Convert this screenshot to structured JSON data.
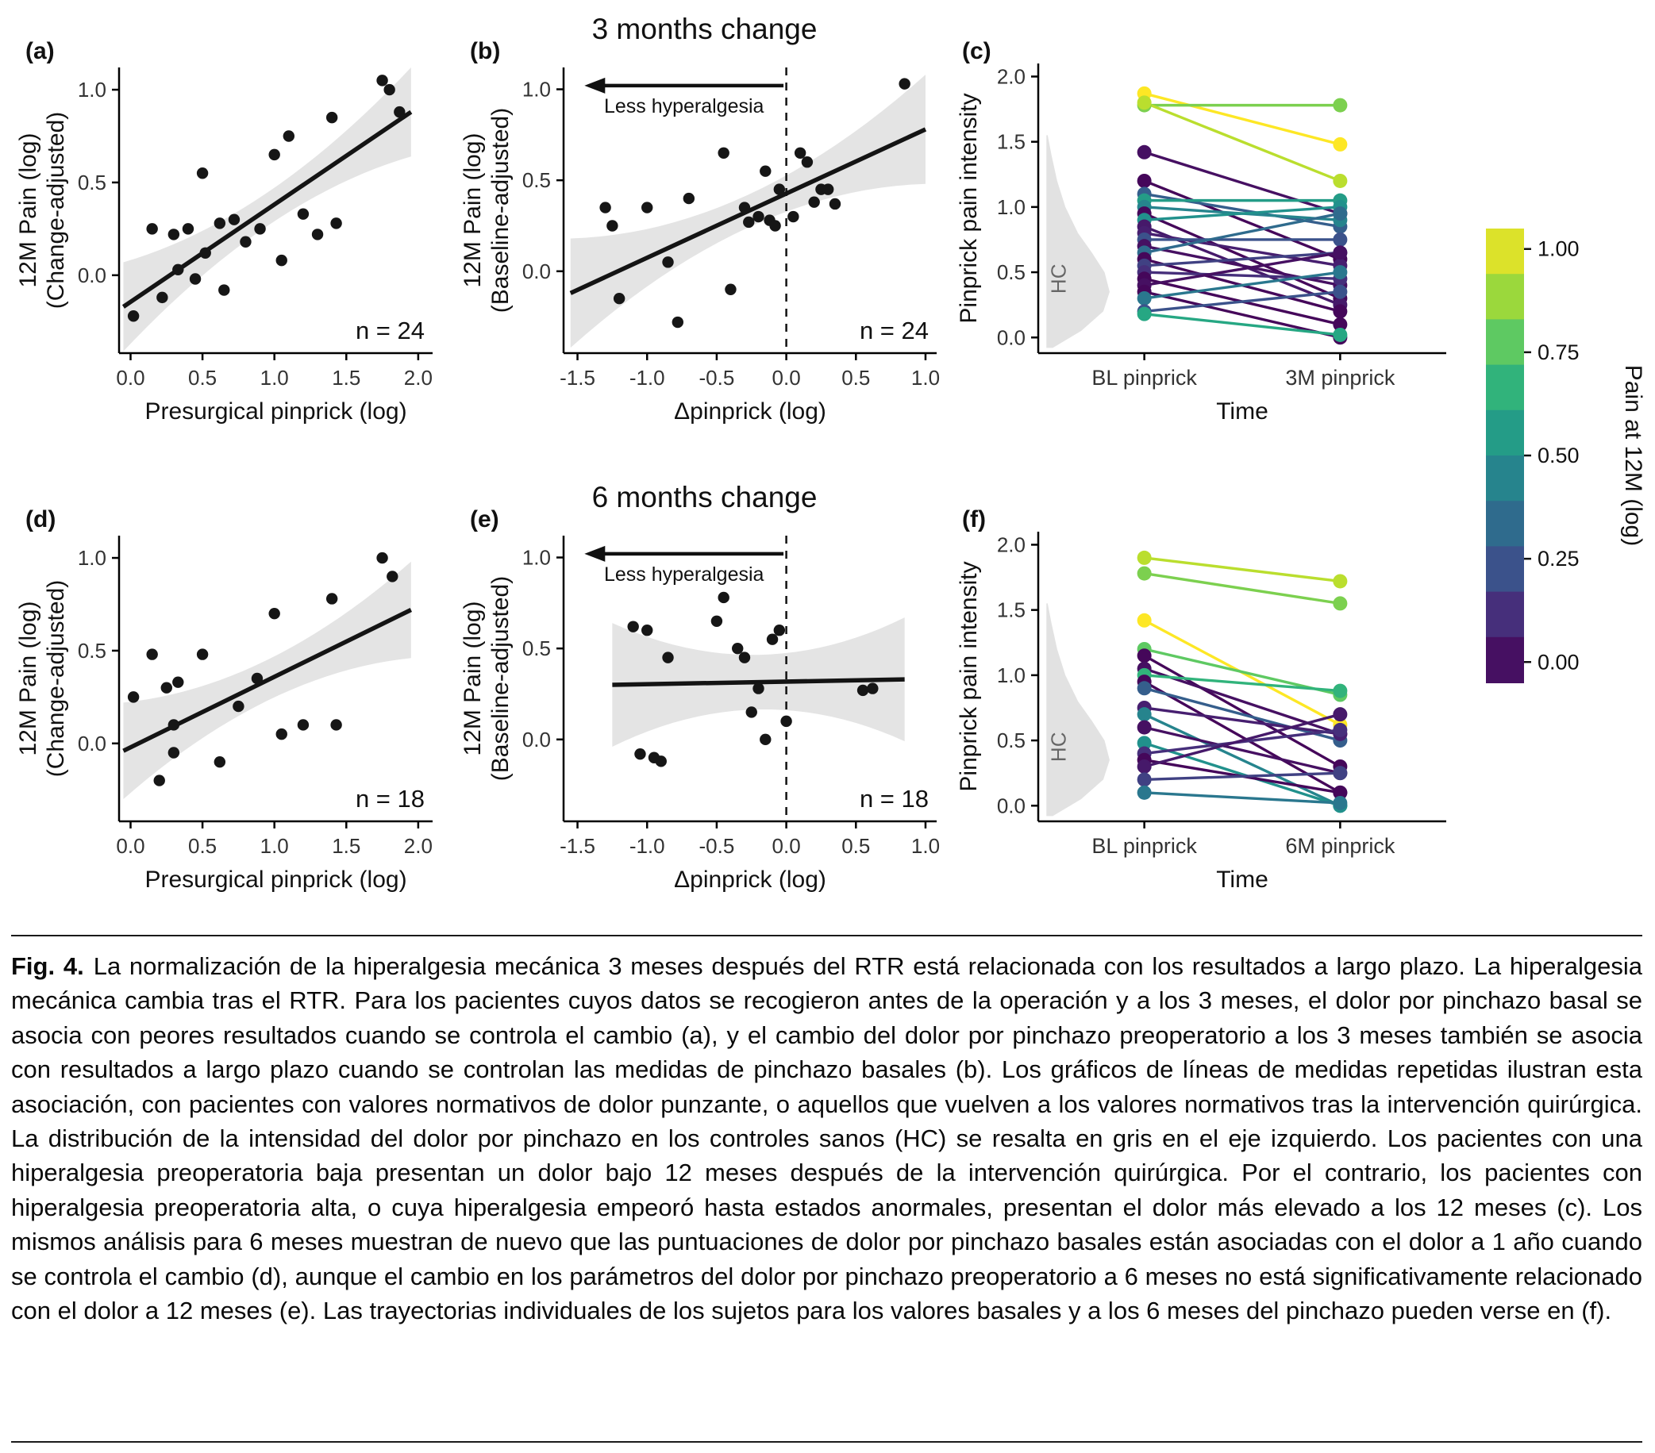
{
  "figure": {
    "titles": {
      "row1": "3 months change",
      "row2": "6 months change"
    },
    "panels": {
      "a": {
        "label": "(a)"
      },
      "b": {
        "label": "(b)"
      },
      "c": {
        "label": "(c)"
      },
      "d": {
        "label": "(d)"
      },
      "e": {
        "label": "(e)"
      },
      "f": {
        "label": "(f)"
      }
    }
  },
  "colorbar": {
    "title": "Pain at 12M (log)",
    "ticks": [
      "1.00",
      "0.75",
      "0.50",
      "0.25",
      "0.00"
    ],
    "viridis_stops": [
      [
        0.0,
        "#440154"
      ],
      [
        0.13,
        "#482878"
      ],
      [
        0.25,
        "#3b528b"
      ],
      [
        0.38,
        "#2c728e"
      ],
      [
        0.5,
        "#21918c"
      ],
      [
        0.63,
        "#28ae80"
      ],
      [
        0.75,
        "#5ec962"
      ],
      [
        0.88,
        "#addc30"
      ],
      [
        1.0,
        "#fde725"
      ]
    ]
  },
  "caption": {
    "label": "Fig. 4.",
    "text": "La normalización de la hiperalgesia mecánica 3 meses después del RTR está relacionada con los resultados a largo plazo. La hiperalgesia mecánica cambia tras el RTR. Para los pacientes cuyos datos se recogieron antes de la operación y a los 3 meses, el dolor por pinchazo basal se asocia con peores resultados cuando se controla el cambio (a), y el cambio del dolor por pinchazo preoperatorio a los 3 meses también se asocia con resultados a largo plazo cuando se controlan las medidas de pinchazo basales (b). Los gráficos de líneas de medidas repetidas ilustran esta asociación, con pacientes con valores normativos de dolor punzante, o aquellos que vuelven a los valores normativos tras la intervención quirúrgica. La distribución de la intensidad del dolor por pinchazo en los controles sanos (HC) se resalta en gris en el eje izquierdo. Los pacientes con una hiperalgesia preoperatoria baja presentan un dolor bajo 12 meses después de la intervención quirúrgica. Por el contrario, los pacientes con hiperalgesia preoperatoria alta, o cuya hiperalgesia empeoró hasta estados anormales, presentan el dolor más elevado a los 12 meses (c). Los mismos análisis para 6 meses muestran de nuevo que las puntuaciones de dolor por pinchazo basales están asociadas con el dolor a 1 año cuando se controla el cambio (d), aunque el cambio en los parámetros del dolor por pinchazo preoperatorio a 6 meses no está significativamente relacionado con el dolor a 12 meses (e). Las trayectorias individuales de los sujetos para los valores basales y a los 6 meses del pinchazo pueden verse en (f)."
  },
  "chart_data": [
    {
      "id": "a",
      "type": "scatter",
      "xlabel": "Presurgical pinprick (log)",
      "ylabel": [
        "12M Pain (log)",
        "(Change-adjusted)"
      ],
      "xlim": [
        -0.08,
        2.1
      ],
      "ylim": [
        -0.42,
        1.12
      ],
      "xticks": [
        0,
        0.5,
        1,
        1.5,
        2
      ],
      "yticks": [
        0,
        0.5,
        1
      ],
      "n_label": "n = 24",
      "regression": {
        "x1": -0.05,
        "y1": -0.17,
        "x2": 1.95,
        "y2": 0.88
      },
      "band": {
        "center": 0.09,
        "edge": 0.24
      },
      "points": [
        [
          0.02,
          -0.22
        ],
        [
          0.15,
          0.25
        ],
        [
          0.22,
          -0.12
        ],
        [
          0.3,
          0.22
        ],
        [
          0.33,
          0.03
        ],
        [
          0.4,
          0.25
        ],
        [
          0.45,
          -0.02
        ],
        [
          0.5,
          0.55
        ],
        [
          0.52,
          0.12
        ],
        [
          0.62,
          0.28
        ],
        [
          0.65,
          -0.08
        ],
        [
          0.72,
          0.3
        ],
        [
          0.8,
          0.18
        ],
        [
          0.9,
          0.25
        ],
        [
          1.0,
          0.65
        ],
        [
          1.05,
          0.08
        ],
        [
          1.1,
          0.75
        ],
        [
          1.2,
          0.33
        ],
        [
          1.3,
          0.22
        ],
        [
          1.4,
          0.85
        ],
        [
          1.43,
          0.28
        ],
        [
          1.75,
          1.05
        ],
        [
          1.8,
          1.0
        ],
        [
          1.87,
          0.88
        ]
      ]
    },
    {
      "id": "b",
      "type": "scatter",
      "xlabel": "Δpinprick  (log)",
      "ylabel": [
        "12M Pain (log)",
        "(Baseline-adjusted)"
      ],
      "xlim": [
        -1.6,
        1.08
      ],
      "ylim": [
        -0.45,
        1.12
      ],
      "xticks": [
        -1.5,
        -1,
        -0.5,
        0,
        0.5,
        1
      ],
      "yticks": [
        0,
        0.5,
        1
      ],
      "n_label": "n = 24",
      "dashed_x": 0,
      "arrow": {
        "label": "Less hyperalgesia",
        "from": -0.02,
        "to": -1.45,
        "y": 1.02
      },
      "regression": {
        "x1": -1.55,
        "y1": -0.12,
        "x2": 1.0,
        "y2": 0.78
      },
      "band": {
        "center": 0.09,
        "edge": 0.3
      },
      "points": [
        [
          -1.3,
          0.35
        ],
        [
          -1.25,
          0.25
        ],
        [
          -1.2,
          -0.15
        ],
        [
          -1.0,
          0.35
        ],
        [
          -0.85,
          0.05
        ],
        [
          -0.78,
          -0.28
        ],
        [
          -0.7,
          0.4
        ],
        [
          -0.45,
          0.65
        ],
        [
          -0.4,
          -0.1
        ],
        [
          -0.3,
          0.35
        ],
        [
          -0.27,
          0.27
        ],
        [
          -0.2,
          0.3
        ],
        [
          -0.15,
          0.55
        ],
        [
          -0.12,
          0.28
        ],
        [
          -0.08,
          0.25
        ],
        [
          -0.05,
          0.45
        ],
        [
          0.05,
          0.3
        ],
        [
          0.1,
          0.65
        ],
        [
          0.15,
          0.6
        ],
        [
          0.2,
          0.38
        ],
        [
          0.25,
          0.45
        ],
        [
          0.3,
          0.45
        ],
        [
          0.35,
          0.37
        ],
        [
          0.85,
          1.03
        ]
      ]
    },
    {
      "id": "c",
      "type": "slope",
      "ylabel": "Pinprick pain intensity",
      "xlabel": "Time",
      "categories": [
        "BL pinprick",
        "3M pinprick"
      ],
      "ylim": [
        -0.12,
        2.1
      ],
      "yticks": [
        0,
        0.5,
        1,
        1.5,
        2
      ],
      "xpos": [
        0.26,
        0.74
      ],
      "hc_label": "HC",
      "density": {
        "max_w": 0.155,
        "profile": [
          [
            -0.08,
            0.1
          ],
          [
            0.05,
            0.55
          ],
          [
            0.2,
            0.9
          ],
          [
            0.35,
            1.0
          ],
          [
            0.5,
            0.92
          ],
          [
            0.65,
            0.72
          ],
          [
            0.8,
            0.5
          ],
          [
            1.0,
            0.3
          ],
          [
            1.2,
            0.17
          ],
          [
            1.4,
            0.08
          ],
          [
            1.55,
            0.02
          ]
        ]
      },
      "subjects": [
        {
          "bl": 1.87,
          "end": 1.48,
          "pain": 1.0
        },
        {
          "bl": 1.78,
          "end": 1.78,
          "pain": 0.8
        },
        {
          "bl": 1.8,
          "end": 1.2,
          "pain": 0.9
        },
        {
          "bl": 1.42,
          "end": 0.95,
          "pain": 0.05
        },
        {
          "bl": 1.2,
          "end": 0.6,
          "pain": 0.02
        },
        {
          "bl": 1.1,
          "end": 0.85,
          "pain": 0.3
        },
        {
          "bl": 1.05,
          "end": 1.05,
          "pain": 0.55
        },
        {
          "bl": 1.0,
          "end": 0.9,
          "pain": 0.45
        },
        {
          "bl": 0.95,
          "end": 0.3,
          "pain": 0.02
        },
        {
          "bl": 0.9,
          "end": 1.0,
          "pain": 0.5
        },
        {
          "bl": 0.85,
          "end": 0.25,
          "pain": 0.08
        },
        {
          "bl": 0.8,
          "end": 0.55,
          "pain": 0.1
        },
        {
          "bl": 0.75,
          "end": 0.75,
          "pain": 0.25
        },
        {
          "bl": 0.7,
          "end": 0.4,
          "pain": 0.05
        },
        {
          "bl": 0.65,
          "end": 0.95,
          "pain": 0.35
        },
        {
          "bl": 0.6,
          "end": 0.2,
          "pain": 0.02
        },
        {
          "bl": 0.55,
          "end": 0.65,
          "pain": 0.2
        },
        {
          "bl": 0.5,
          "end": 0.45,
          "pain": 0.15
        },
        {
          "bl": 0.45,
          "end": 0.1,
          "pain": 0.02
        },
        {
          "bl": 0.4,
          "end": 0.65,
          "pain": 0.05
        },
        {
          "bl": 0.35,
          "end": 0.0,
          "pain": 0.02
        },
        {
          "bl": 0.3,
          "end": 0.5,
          "pain": 0.4
        },
        {
          "bl": 0.2,
          "end": 0.35,
          "pain": 0.25
        },
        {
          "bl": 0.18,
          "end": 0.02,
          "pain": 0.6
        }
      ]
    },
    {
      "id": "d",
      "type": "scatter",
      "xlabel": "Presurgical pinprick (log)",
      "ylabel": [
        "12M Pain (log)",
        "(Change-adjusted)"
      ],
      "xlim": [
        -0.08,
        2.1
      ],
      "ylim": [
        -0.42,
        1.12
      ],
      "xticks": [
        0,
        0.5,
        1,
        1.5,
        2
      ],
      "yticks": [
        0,
        0.5,
        1
      ],
      "n_label": "n = 18",
      "regression": {
        "x1": -0.05,
        "y1": -0.04,
        "x2": 1.95,
        "y2": 0.72
      },
      "band": {
        "center": 0.11,
        "edge": 0.26
      },
      "points": [
        [
          0.02,
          0.25
        ],
        [
          0.15,
          0.48
        ],
        [
          0.2,
          -0.2
        ],
        [
          0.25,
          0.3
        ],
        [
          0.3,
          0.1
        ],
        [
          0.3,
          -0.05
        ],
        [
          0.33,
          0.33
        ],
        [
          0.5,
          0.48
        ],
        [
          0.62,
          -0.1
        ],
        [
          0.75,
          0.2
        ],
        [
          0.88,
          0.35
        ],
        [
          1.0,
          0.7
        ],
        [
          1.05,
          0.05
        ],
        [
          1.2,
          0.1
        ],
        [
          1.4,
          0.78
        ],
        [
          1.43,
          0.1
        ],
        [
          1.75,
          1.0
        ],
        [
          1.82,
          0.9
        ]
      ]
    },
    {
      "id": "e",
      "type": "scatter",
      "xlabel": "Δpinprick  (log)",
      "ylabel": [
        "12M Pain (log)",
        "(Baseline-adjusted)"
      ],
      "xlim": [
        -1.6,
        1.08
      ],
      "ylim": [
        -0.45,
        1.12
      ],
      "xticks": [
        -1.5,
        -1,
        -0.5,
        0,
        0.5,
        1
      ],
      "yticks": [
        0,
        0.5,
        1
      ],
      "n_label": "n = 18",
      "dashed_x": 0,
      "arrow": {
        "label": "Less hyperalgesia",
        "from": -0.02,
        "to": -1.45,
        "y": 1.02
      },
      "regression": {
        "x1": -1.25,
        "y1": 0.3,
        "x2": 0.85,
        "y2": 0.33
      },
      "band": {
        "center": 0.15,
        "edge": 0.34
      },
      "points": [
        [
          -1.1,
          0.62
        ],
        [
          -1.05,
          -0.08
        ],
        [
          -1.0,
          0.6
        ],
        [
          -0.95,
          -0.1
        ],
        [
          -0.9,
          -0.12
        ],
        [
          -0.85,
          0.45
        ],
        [
          -0.5,
          0.65
        ],
        [
          -0.45,
          0.78
        ],
        [
          -0.35,
          0.5
        ],
        [
          -0.3,
          0.45
        ],
        [
          -0.25,
          0.15
        ],
        [
          -0.2,
          0.28
        ],
        [
          -0.15,
          0.0
        ],
        [
          -0.1,
          0.55
        ],
        [
          -0.05,
          0.6
        ],
        [
          0.0,
          0.1
        ],
        [
          0.55,
          0.27
        ],
        [
          0.62,
          0.28
        ]
      ]
    },
    {
      "id": "f",
      "type": "slope",
      "ylabel": "Pinprick pain intensity",
      "xlabel": "Time",
      "categories": [
        "BL pinprick",
        "6M pinprick"
      ],
      "ylim": [
        -0.12,
        2.1
      ],
      "yticks": [
        0,
        0.5,
        1,
        1.5,
        2
      ],
      "xpos": [
        0.26,
        0.74
      ],
      "hc_label": "HC",
      "density": {
        "max_w": 0.155,
        "profile": [
          [
            -0.08,
            0.1
          ],
          [
            0.05,
            0.55
          ],
          [
            0.2,
            0.9
          ],
          [
            0.35,
            1.0
          ],
          [
            0.5,
            0.92
          ],
          [
            0.65,
            0.72
          ],
          [
            0.8,
            0.5
          ],
          [
            1.0,
            0.3
          ],
          [
            1.2,
            0.17
          ],
          [
            1.4,
            0.08
          ],
          [
            1.55,
            0.02
          ]
        ]
      },
      "subjects": [
        {
          "bl": 1.9,
          "end": 1.72,
          "pain": 0.9
        },
        {
          "bl": 1.78,
          "end": 1.55,
          "pain": 0.8
        },
        {
          "bl": 1.42,
          "end": 0.62,
          "pain": 1.0
        },
        {
          "bl": 1.2,
          "end": 0.85,
          "pain": 0.75
        },
        {
          "bl": 1.15,
          "end": 0.3,
          "pain": 0.02
        },
        {
          "bl": 1.05,
          "end": 0.55,
          "pain": 0.05
        },
        {
          "bl": 1.0,
          "end": 0.88,
          "pain": 0.65
        },
        {
          "bl": 0.95,
          "end": 0.1,
          "pain": 0.02
        },
        {
          "bl": 0.9,
          "end": 0.5,
          "pain": 0.3
        },
        {
          "bl": 0.75,
          "end": 0.55,
          "pain": 0.1
        },
        {
          "bl": 0.7,
          "end": 0.0,
          "pain": 0.45
        },
        {
          "bl": 0.6,
          "end": 0.25,
          "pain": 0.05
        },
        {
          "bl": 0.48,
          "end": 0.0,
          "pain": 0.5
        },
        {
          "bl": 0.4,
          "end": 0.58,
          "pain": 0.15
        },
        {
          "bl": 0.35,
          "end": 0.1,
          "pain": 0.02
        },
        {
          "bl": 0.3,
          "end": 0.7,
          "pain": 0.08
        },
        {
          "bl": 0.2,
          "end": 0.25,
          "pain": 0.2
        },
        {
          "bl": 0.1,
          "end": 0.02,
          "pain": 0.4
        }
      ]
    }
  ]
}
